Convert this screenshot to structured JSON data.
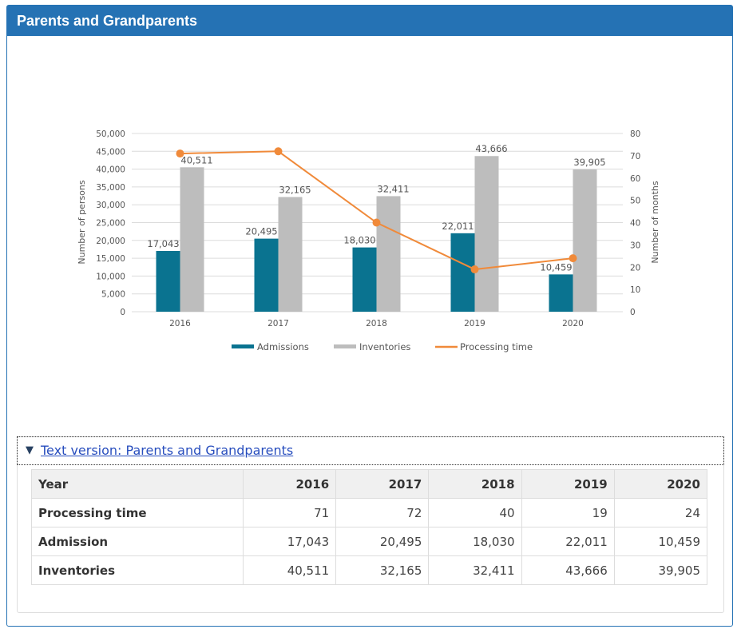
{
  "panel": {
    "title": "Parents and Grandparents",
    "accent_color": "#2572b4"
  },
  "chart_data": {
    "type": "bar",
    "title": "",
    "categories": [
      "2016",
      "2017",
      "2018",
      "2019",
      "2020"
    ],
    "series": [
      {
        "name": "Admissions",
        "type": "bar",
        "axis": "left",
        "color": "#0a7390",
        "values": [
          17043,
          20495,
          18030,
          22011,
          10459
        ],
        "labels": [
          "17,043",
          "20,495",
          "18,030",
          "22,011",
          "10,459"
        ]
      },
      {
        "name": "Inventories",
        "type": "bar",
        "axis": "left",
        "color": "#bdbdbd",
        "values": [
          40511,
          32165,
          32411,
          43666,
          39905
        ],
        "labels": [
          "40,511",
          "32,165",
          "32,411",
          "43,666",
          "39,905"
        ]
      },
      {
        "name": "Processing time",
        "type": "line",
        "axis": "right",
        "color": "#f08a3a",
        "values": [
          71,
          72,
          40,
          19,
          24
        ]
      }
    ],
    "ylabel": "Number of persons",
    "y2label": "Number of months",
    "ylim": [
      0,
      50000
    ],
    "y2lim": [
      0,
      80
    ],
    "yticks": [
      "0",
      "5,000",
      "10,000",
      "15,000",
      "20,000",
      "25,000",
      "30,000",
      "35,000",
      "40,000",
      "45,000",
      "50,000"
    ],
    "y2ticks": [
      "0",
      "10",
      "20",
      "30",
      "40",
      "50",
      "60",
      "70",
      "80"
    ],
    "grid": true,
    "legend": "bottom"
  },
  "text_version": {
    "toggle_label": "Text version: Parents and Grandparents",
    "toggle_icon": "triangle-down-icon",
    "table": {
      "header": [
        "Year",
        "2016",
        "2017",
        "2018",
        "2019",
        "2020"
      ],
      "rows": [
        [
          "Processing time",
          "71",
          "72",
          "40",
          "19",
          "24"
        ],
        [
          "Admission",
          "17,043",
          "20,495",
          "18,030",
          "22,011",
          "10,459"
        ],
        [
          "Inventories",
          "40,511",
          "32,165",
          "32,411",
          "43,666",
          "39,905"
        ]
      ]
    }
  }
}
